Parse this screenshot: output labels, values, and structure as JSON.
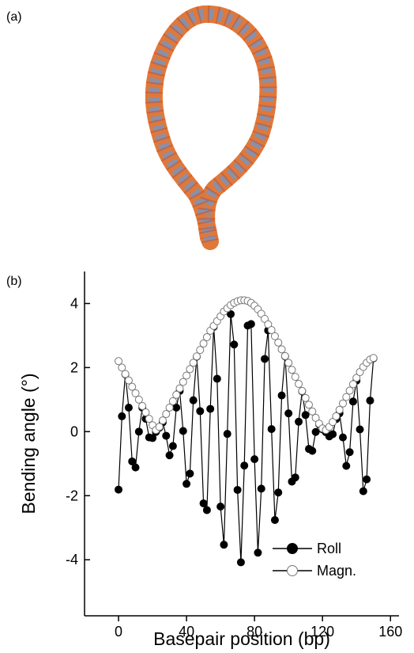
{
  "panel_labels": [
    "(a)",
    "(b)"
  ],
  "chart_data": {
    "type": "line",
    "x_label": "Basepair position (bp)",
    "y_label": "Bending angle (°)",
    "x": [
      0,
      2,
      4,
      6,
      8,
      10,
      12,
      14,
      16,
      18,
      20,
      22,
      24,
      26,
      28,
      30,
      32,
      34,
      36,
      38,
      40,
      42,
      44,
      46,
      48,
      50,
      52,
      54,
      56,
      58,
      60,
      62,
      64,
      66,
      68,
      70,
      72,
      74,
      76,
      78,
      80,
      82,
      84,
      86,
      88,
      90,
      92,
      94,
      96,
      98,
      100,
      102,
      104,
      106,
      108,
      110,
      112,
      114,
      116,
      118,
      120,
      122,
      124,
      126,
      128,
      130,
      132,
      134,
      136,
      138,
      140,
      142,
      144,
      146,
      148,
      150
    ],
    "series": [
      {
        "name": "Roll",
        "color": "#000000",
        "marker": "filled",
        "values": [
          -1.81,
          0.48,
          1.79,
          0.75,
          -0.93,
          -1.12,
          0.0,
          0.75,
          0.4,
          -0.18,
          -0.2,
          -0.01,
          0.12,
          0.29,
          -0.13,
          -0.74,
          -0.45,
          0.75,
          1.27,
          0.02,
          -1.63,
          -1.31,
          0.98,
          2.34,
          0.64,
          -2.24,
          -2.45,
          0.71,
          3.27,
          1.65,
          -2.34,
          -3.53,
          -0.07,
          3.67,
          2.72,
          -1.82,
          -4.08,
          -1.06,
          3.31,
          3.36,
          -0.86,
          -3.78,
          -1.78,
          2.27,
          3.16,
          0.08,
          -2.76,
          -1.9,
          1.13,
          2.35,
          0.57,
          -1.56,
          -1.43,
          0.31,
          1.26,
          0.52,
          -0.54,
          -0.6,
          -0.01,
          0.23,
          0.07,
          -0.02,
          -0.15,
          -0.08,
          0.39,
          0.57,
          -0.18,
          -1.07,
          -0.64,
          0.94,
          1.59,
          0.07,
          -1.86,
          -1.49,
          0.97,
          2.29
        ]
      },
      {
        "name": "Magn.",
        "color": "#000000",
        "marker": "open",
        "values": [
          2.2,
          2.0,
          1.8,
          1.6,
          1.4,
          1.2,
          1.0,
          0.8,
          0.6,
          0.4,
          0.2,
          0.05,
          0.15,
          0.35,
          0.55,
          0.75,
          0.95,
          1.15,
          1.35,
          1.55,
          1.75,
          1.95,
          2.15,
          2.35,
          2.55,
          2.75,
          2.95,
          3.15,
          3.3,
          3.45,
          3.6,
          3.75,
          3.85,
          3.95,
          4.02,
          4.07,
          4.1,
          4.1,
          4.08,
          4.02,
          3.93,
          3.82,
          3.68,
          3.52,
          3.35,
          3.17,
          2.98,
          2.78,
          2.57,
          2.36,
          2.15,
          1.93,
          1.71,
          1.49,
          1.27,
          1.05,
          0.84,
          0.63,
          0.43,
          0.25,
          0.1,
          0.05,
          0.15,
          0.3,
          0.48,
          0.68,
          0.88,
          1.08,
          1.28,
          1.48,
          1.68,
          1.86,
          2.02,
          2.15,
          2.25,
          2.3
        ]
      }
    ],
    "xlim": [
      -20,
      165
    ],
    "ylim": [
      -5.75,
      5
    ],
    "xticks": [
      0,
      40,
      80,
      120,
      160
    ],
    "yticks": [
      -4,
      -2,
      0,
      2,
      4
    ],
    "grid": false,
    "legend": "lower right"
  }
}
